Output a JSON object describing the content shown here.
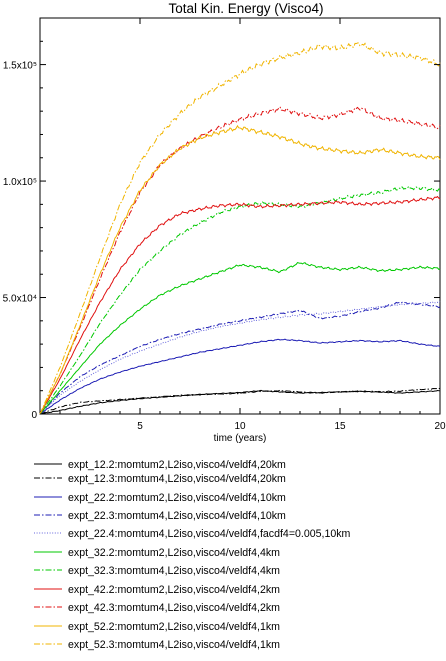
{
  "chart_data": {
    "type": "line",
    "title": "Total Kin. Energy (Visco4)",
    "xlabel": "time (years)",
    "ylabel": "",
    "xlim": [
      0,
      20
    ],
    "ylim": [
      0,
      170000
    ],
    "x_ticks": [
      {
        "value": 5,
        "label": "5"
      },
      {
        "value": 10,
        "label": "10"
      },
      {
        "value": 15,
        "label": "15"
      },
      {
        "value": 20,
        "label": "20"
      }
    ],
    "y_ticks": [
      {
        "value": 0,
        "label": "0"
      },
      {
        "value": 50000,
        "label": "5.0x10⁴"
      },
      {
        "value": 100000,
        "label": "1.0x10⁵"
      },
      {
        "value": 150000,
        "label": "1.5x10⁵"
      }
    ],
    "grid": false,
    "legend_placement": "below plot",
    "series": [
      {
        "name": "expt_12.2:momtum2,L2iso,visco4/veldf4,20km",
        "color": "#000000",
        "dash": "solid",
        "x": [
          0,
          1,
          2,
          3,
          4,
          5,
          6,
          7,
          8,
          9,
          10,
          11,
          12,
          13,
          14,
          15,
          16,
          17,
          18,
          19,
          20
        ],
        "y": [
          0,
          1500,
          3300,
          4800,
          5800,
          6600,
          7200,
          7800,
          8400,
          8800,
          9200,
          10000,
          9500,
          9000,
          9200,
          9500,
          9700,
          9400,
          9000,
          9500,
          10000
        ]
      },
      {
        "name": "expt_12.3:momtum4,L2iso,visco4/veldf4,20km",
        "color": "#000000",
        "dash": "dashdot",
        "x": [
          0,
          1,
          2,
          3,
          4,
          5,
          6,
          7,
          8,
          9,
          10,
          11,
          12,
          13,
          14,
          15,
          16,
          17,
          18,
          19,
          20
        ],
        "y": [
          0,
          3000,
          5000,
          5600,
          6200,
          6800,
          7400,
          8000,
          8300,
          8600,
          8900,
          9700,
          10000,
          9500,
          9000,
          9500,
          9800,
          9600,
          9800,
          10500,
          11000
        ]
      },
      {
        "name": "expt_22.2:momtum2,L2iso,visco4/veldf4,10km",
        "color": "#1c1cb4",
        "dash": "solid",
        "x": [
          0,
          1,
          2,
          3,
          4,
          5,
          6,
          7,
          8,
          9,
          10,
          11,
          12,
          13,
          14,
          15,
          16,
          17,
          18,
          19,
          20
        ],
        "y": [
          0,
          6000,
          11000,
          15000,
          18000,
          20500,
          22500,
          24500,
          26500,
          28000,
          29500,
          31000,
          32000,
          31500,
          30500,
          31000,
          31500,
          31000,
          31500,
          30000,
          29000
        ]
      },
      {
        "name": "expt_22.3:momtum4,L2iso,visco4/veldf4,10km",
        "color": "#1c1cb4",
        "dash": "dashdot",
        "x": [
          0,
          1,
          2,
          3,
          4,
          5,
          6,
          7,
          8,
          9,
          10,
          11,
          12,
          13,
          14,
          15,
          16,
          17,
          18,
          19,
          20
        ],
        "y": [
          0,
          9000,
          16000,
          21000,
          25000,
          29000,
          32000,
          34500,
          36500,
          38500,
          40000,
          41500,
          43000,
          44500,
          41000,
          42000,
          44000,
          45500,
          48000,
          47000,
          46000
        ]
      },
      {
        "name": "expt_22.4:momtum4,L2iso,visco4/veldf4,facdf4=0.005,10km",
        "color": "#6464dc",
        "dash": "dotted",
        "x": [
          0,
          1,
          2,
          3,
          4,
          5,
          6,
          7,
          8,
          9,
          10,
          11,
          12,
          13,
          14,
          15,
          16,
          17,
          18,
          19,
          20
        ],
        "y": [
          0,
          8000,
          14000,
          19000,
          23500,
          27000,
          30000,
          33000,
          35500,
          37500,
          39000,
          40500,
          41500,
          42500,
          43000,
          44000,
          45000,
          46000,
          47000,
          47500,
          48000
        ]
      },
      {
        "name": "expt_32.2:momtum2,L2iso,visco4/veldf4,4km",
        "color": "#00c800",
        "dash": "solid",
        "x": [
          0,
          1,
          2,
          3,
          4,
          5,
          6,
          7,
          8,
          9,
          10,
          11,
          12,
          13,
          14,
          15,
          16,
          17,
          18,
          19,
          20
        ],
        "y": [
          0,
          10000,
          20000,
          30000,
          38000,
          45000,
          51000,
          55000,
          58000,
          61000,
          64000,
          63000,
          61000,
          65000,
          63000,
          62000,
          63000,
          61500,
          62000,
          63000,
          62500
        ]
      },
      {
        "name": "expt_32.3:momtum4,L2iso,visco4/veldf4,4km",
        "color": "#00c800",
        "dash": "dashdot",
        "x": [
          0,
          1,
          2,
          3,
          4,
          5,
          6,
          7,
          8,
          9,
          10,
          11,
          12,
          13,
          14,
          15,
          16,
          17,
          18,
          19,
          20
        ],
        "y": [
          0,
          12000,
          25000,
          39000,
          51000,
          62000,
          70000,
          77000,
          82000,
          86500,
          89000,
          90500,
          90000,
          89000,
          90500,
          92500,
          94000,
          95000,
          97000,
          97000,
          96000
        ]
      },
      {
        "name": "expt_42.2:momtum2,L2iso,visco4/veldf4,2km",
        "color": "#e01010",
        "dash": "solid",
        "x": [
          0,
          1,
          2,
          3,
          4,
          5,
          6,
          7,
          8,
          9,
          10,
          11,
          12,
          13,
          14,
          15,
          16,
          17,
          18,
          19,
          20
        ],
        "y": [
          0,
          15000,
          32000,
          48000,
          62000,
          73000,
          81000,
          86000,
          88000,
          89500,
          90000,
          89000,
          89500,
          90000,
          90500,
          91000,
          90000,
          90500,
          91000,
          92000,
          93000
        ]
      },
      {
        "name": "expt_42.3:momtum4,L2iso,visco4/veldf4,2km",
        "color": "#e01010",
        "dash": "dashdot",
        "x": [
          0,
          1,
          2,
          3,
          4,
          5,
          6,
          7,
          8,
          9,
          10,
          11,
          12,
          13,
          14,
          15,
          16,
          17,
          18,
          19,
          20
        ],
        "y": [
          0,
          17000,
          37000,
          58000,
          78000,
          95000,
          107000,
          114000,
          119000,
          123000,
          126500,
          129000,
          131000,
          129000,
          127000,
          128500,
          131500,
          127000,
          126000,
          124500,
          123000
        ]
      },
      {
        "name": "expt_52.2:momtum2,L2iso,visco4/veldf4,1km",
        "color": "#f0b400",
        "dash": "solid",
        "x": [
          0,
          1,
          2,
          3,
          4,
          5,
          6,
          7,
          8,
          9,
          10,
          11,
          12,
          13,
          14,
          15,
          16,
          17,
          18,
          19,
          20
        ],
        "y": [
          0,
          17000,
          38000,
          60000,
          80000,
          96000,
          107000,
          114000,
          118500,
          121000,
          123000,
          121000,
          119000,
          116000,
          114000,
          113000,
          112000,
          113500,
          112000,
          110500,
          110000
        ]
      },
      {
        "name": "expt_52.3:momtum4,L2iso,visco4/veldf4,1km",
        "color": "#f0b400",
        "dash": "dashdot",
        "x": [
          0,
          1,
          2,
          3,
          4,
          5,
          6,
          7,
          8,
          9,
          10,
          11,
          12,
          13,
          14,
          15,
          16,
          17,
          18,
          19,
          20
        ],
        "y": [
          0,
          20000,
          43000,
          67000,
          90000,
          108000,
          120000,
          129000,
          136000,
          141000,
          146000,
          150000,
          153000,
          155000,
          158000,
          157000,
          159000,
          155000,
          154000,
          153000,
          150000
        ]
      }
    ]
  }
}
